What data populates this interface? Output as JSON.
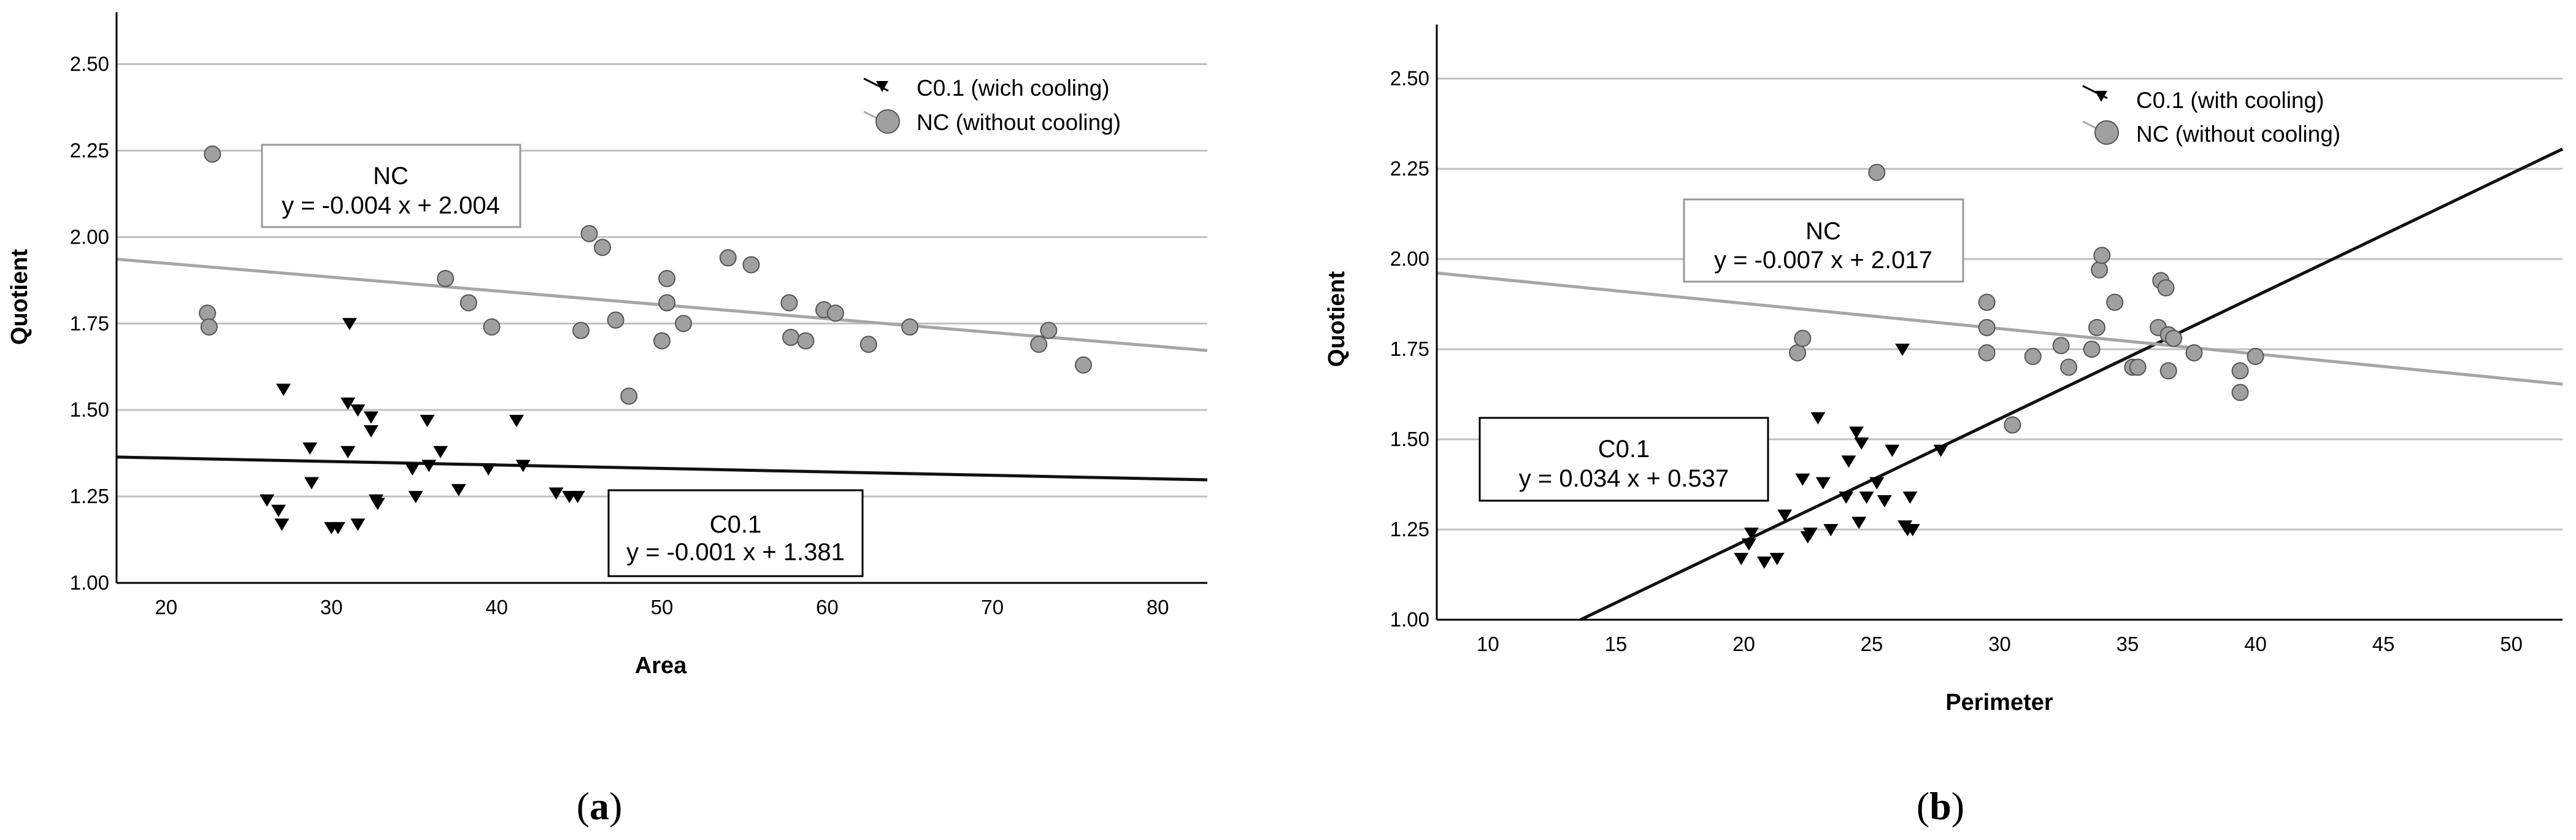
{
  "colors": {
    "nc": "#808080",
    "nc_fill": "#a0a0a0",
    "c01": "#000000",
    "grid": "#c0c0c0",
    "nc_line": "#a6a6a6",
    "c_line": "#111111"
  },
  "chart_data": [
    {
      "type": "scatter",
      "panel": "a",
      "caption": {
        "open": "(",
        "letter": "a",
        "close": ")"
      },
      "xlabel": "Area",
      "ylabel": "Quotient",
      "xlim": [
        17,
        83
      ],
      "ylim": [
        1.0,
        2.65
      ],
      "xticks": [
        "20",
        "30",
        "40",
        "50",
        "60",
        "70",
        "80"
      ],
      "yticks": [
        "1.00",
        "1.25",
        "1.50",
        "1.75",
        "2.00",
        "2.25",
        "2.50"
      ],
      "legend": {
        "placement": "top-right",
        "entries": [
          "C0.1 (wich cooling)",
          "NC (without cooling)"
        ]
      },
      "series": [
        {
          "name": "C0.1",
          "marker": "triangle-down",
          "points": [
            [
              26.1,
              1.24
            ],
            [
              26.8,
              1.21
            ],
            [
              27.0,
              1.17
            ],
            [
              27.1,
              1.56
            ],
            [
              28.7,
              1.39
            ],
            [
              28.8,
              1.29
            ],
            [
              30.0,
              1.16
            ],
            [
              30.4,
              1.16
            ],
            [
              31.0,
              1.52
            ],
            [
              31.0,
              1.38
            ],
            [
              31.1,
              1.75
            ],
            [
              31.6,
              1.5
            ],
            [
              31.6,
              1.17
            ],
            [
              32.4,
              1.48
            ],
            [
              32.4,
              1.44
            ],
            [
              32.7,
              1.24
            ],
            [
              32.8,
              1.23
            ],
            [
              34.9,
              1.33
            ],
            [
              35.1,
              1.25
            ],
            [
              35.8,
              1.47
            ],
            [
              35.9,
              1.34
            ],
            [
              36.6,
              1.38
            ],
            [
              37.7,
              1.27
            ],
            [
              39.5,
              1.33
            ],
            [
              41.2,
              1.47
            ],
            [
              41.6,
              1.34
            ],
            [
              43.6,
              1.26
            ],
            [
              44.4,
              1.25
            ],
            [
              44.9,
              1.25
            ]
          ],
          "fit": {
            "slope": -0.001,
            "intercept": 1.381,
            "label": "C0.1",
            "equation": "y = -0.001  x + 1.381"
          }
        },
        {
          "name": "NC",
          "marker": "circle",
          "points": [
            [
              22.5,
              1.78
            ],
            [
              22.6,
              1.74
            ],
            [
              22.8,
              2.24
            ],
            [
              36.9,
              1.88
            ],
            [
              38.3,
              1.81
            ],
            [
              39.7,
              1.74
            ],
            [
              45.1,
              1.73
            ],
            [
              45.6,
              2.01
            ],
            [
              46.4,
              1.97
            ],
            [
              47.2,
              1.76
            ],
            [
              48.0,
              1.54
            ],
            [
              50.0,
              1.7
            ],
            [
              50.3,
              1.88
            ],
            [
              50.3,
              1.81
            ],
            [
              51.3,
              1.75
            ],
            [
              54.0,
              1.94
            ],
            [
              55.4,
              1.92
            ],
            [
              57.7,
              1.81
            ],
            [
              57.8,
              1.71
            ],
            [
              58.7,
              1.7
            ],
            [
              59.8,
              1.79
            ],
            [
              60.5,
              1.78
            ],
            [
              62.5,
              1.69
            ],
            [
              65.0,
              1.74
            ],
            [
              72.8,
              1.69
            ],
            [
              73.4,
              1.73
            ],
            [
              75.5,
              1.63
            ]
          ],
          "fit": {
            "slope": -0.004,
            "intercept": 2.004,
            "label": "NC",
            "equation": "y = -0.004  x + 2.004"
          }
        }
      ]
    },
    {
      "type": "scatter",
      "panel": "b",
      "caption": {
        "open": "(",
        "letter": "b",
        "close": ")"
      },
      "xlabel": "Perimeter",
      "ylabel": "Quotient",
      "xlim": [
        8,
        52
      ],
      "ylim": [
        1.0,
        2.65
      ],
      "xticks": [
        "10",
        "15",
        "20",
        "25",
        "30",
        "35",
        "40",
        "45",
        "50"
      ],
      "yticks": [
        "1.00",
        "1.25",
        "1.50",
        "1.75",
        "2.00",
        "2.25",
        "2.50"
      ],
      "legend": {
        "placement": "top-right",
        "entries": [
          "C0.1 (with cooling)",
          "NC (without cooling)"
        ]
      },
      "series": [
        {
          "name": "C0.1",
          "marker": "triangle-down",
          "points": [
            [
              19.9,
              1.17
            ],
            [
              20.2,
              1.21
            ],
            [
              20.3,
              1.24
            ],
            [
              20.8,
              1.16
            ],
            [
              21.3,
              1.17
            ],
            [
              21.6,
              1.29
            ],
            [
              22.3,
              1.39
            ],
            [
              22.5,
              1.23
            ],
            [
              22.6,
              1.24
            ],
            [
              22.9,
              1.56
            ],
            [
              23.1,
              1.38
            ],
            [
              23.4,
              1.25
            ],
            [
              24.0,
              1.34
            ],
            [
              24.1,
              1.44
            ],
            [
              24.4,
              1.52
            ],
            [
              24.5,
              1.27
            ],
            [
              24.6,
              1.49
            ],
            [
              24.8,
              1.34
            ],
            [
              25.2,
              1.38
            ],
            [
              25.5,
              1.33
            ],
            [
              25.8,
              1.47
            ],
            [
              26.2,
              1.75
            ],
            [
              26.3,
              1.26
            ],
            [
              26.4,
              1.25
            ],
            [
              26.5,
              1.34
            ],
            [
              26.6,
              1.25
            ],
            [
              27.7,
              1.47
            ]
          ],
          "fit": {
            "slope": 0.034,
            "intercept": 0.537,
            "label": "C0.1",
            "equation": "y = 0.034  x + 0.537"
          }
        },
        {
          "name": "NC",
          "marker": "circle",
          "points": [
            [
              22.1,
              1.74
            ],
            [
              22.3,
              1.78
            ],
            [
              25.2,
              2.24
            ],
            [
              29.5,
              1.88
            ],
            [
              29.5,
              1.81
            ],
            [
              29.5,
              1.74
            ],
            [
              30.5,
              1.54
            ],
            [
              31.3,
              1.73
            ],
            [
              32.4,
              1.76
            ],
            [
              32.7,
              1.7
            ],
            [
              33.6,
              1.75
            ],
            [
              33.8,
              1.81
            ],
            [
              33.9,
              1.97
            ],
            [
              34.0,
              2.01
            ],
            [
              34.5,
              1.88
            ],
            [
              35.2,
              1.7
            ],
            [
              35.4,
              1.7
            ],
            [
              36.2,
              1.81
            ],
            [
              36.3,
              1.94
            ],
            [
              36.5,
              1.92
            ],
            [
              36.6,
              1.69
            ],
            [
              36.6,
              1.79
            ],
            [
              36.8,
              1.78
            ],
            [
              37.6,
              1.74
            ],
            [
              39.4,
              1.69
            ],
            [
              39.4,
              1.63
            ],
            [
              40.0,
              1.73
            ]
          ],
          "fit": {
            "slope": -0.007,
            "intercept": 2.017,
            "label": "NC",
            "equation": "y = -0.007  x + 2.017"
          }
        }
      ]
    }
  ]
}
